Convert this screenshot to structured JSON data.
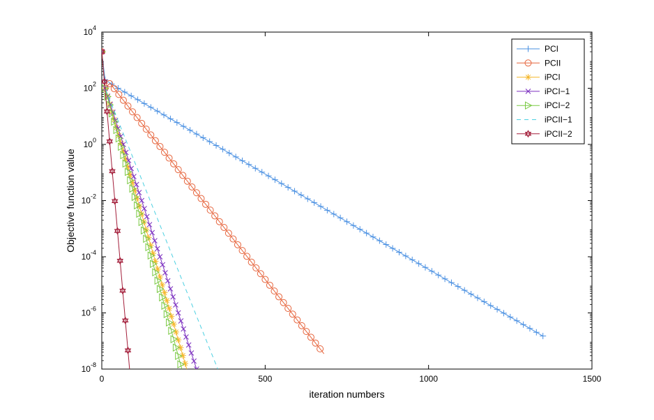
{
  "chart_data": {
    "type": "line",
    "title": "",
    "xlabel": "iteration numbers",
    "ylabel": "Objective function value",
    "xlim": [
      0,
      1500
    ],
    "ylim": [
      1e-08,
      10000
    ],
    "y_scale": "log",
    "grid": false,
    "legend_position": "top-right",
    "x_ticks": [
      {
        "value": 0,
        "label": "0"
      },
      {
        "value": 500,
        "label": "500"
      },
      {
        "value": 1000,
        "label": "1000"
      },
      {
        "value": 1500,
        "label": "1500"
      }
    ],
    "y_ticks": [
      {
        "value": 1e-08,
        "base": "10",
        "exp": "-8"
      },
      {
        "value": 1e-06,
        "base": "10",
        "exp": "-6"
      },
      {
        "value": 0.0001,
        "base": "10",
        "exp": "-4"
      },
      {
        "value": 0.01,
        "base": "10",
        "exp": "-2"
      },
      {
        "value": 1,
        "base": "10",
        "exp": "0"
      },
      {
        "value": 100,
        "base": "10",
        "exp": "2"
      },
      {
        "value": 10000,
        "base": "10",
        "exp": "4"
      }
    ],
    "series": [
      {
        "name": "PCI",
        "color": "#4a90e2",
        "marker": "plus",
        "dash": "none",
        "x": [
          0,
          10,
          50,
          1350
        ],
        "y": [
          2000,
          200,
          100,
          1.5e-07
        ],
        "marker_spacing": 20,
        "marker_start": 10
      },
      {
        "name": "PCII",
        "color": "#e6643c",
        "marker": "circle",
        "dash": "none",
        "x": [
          0,
          10,
          25,
          680
        ],
        "y": [
          2000,
          100,
          150,
          3.5e-08
        ],
        "marker_spacing": 14,
        "marker_start": 10
      },
      {
        "name": "iPCI",
        "color": "#f5b82e",
        "marker": "asterisk",
        "dash": "none",
        "x": [
          0,
          10,
          260
        ],
        "y": [
          2000,
          100,
          1e-08
        ],
        "marker_spacing": 7,
        "marker_start": 10
      },
      {
        "name": "iPCI−1",
        "color": "#7b2fbf",
        "marker": "x",
        "dash": "none",
        "x": [
          0,
          10,
          290
        ],
        "y": [
          2000,
          100,
          1e-08
        ],
        "marker_spacing": 8,
        "marker_start": 10
      },
      {
        "name": "iPCI−2",
        "color": "#7ac943",
        "marker": "triangle-right",
        "dash": "none",
        "x": [
          0,
          10,
          245
        ],
        "y": [
          2000,
          100,
          1e-08
        ],
        "marker_spacing": 7,
        "marker_start": 10
      },
      {
        "name": "iPCII−1",
        "color": "#4dd0e1",
        "marker": "none",
        "dash": "6,5",
        "x": [
          0,
          10,
          355
        ],
        "y": [
          2000,
          100,
          1e-08
        ],
        "marker_spacing": 0,
        "marker_start": 0
      },
      {
        "name": "iPCII−2",
        "color": "#a31e3a",
        "marker": "hexagram",
        "dash": "none",
        "x": [
          0,
          85
        ],
        "y": [
          2000,
          1e-08
        ],
        "marker_spacing": 8,
        "marker_start": 8
      }
    ]
  }
}
